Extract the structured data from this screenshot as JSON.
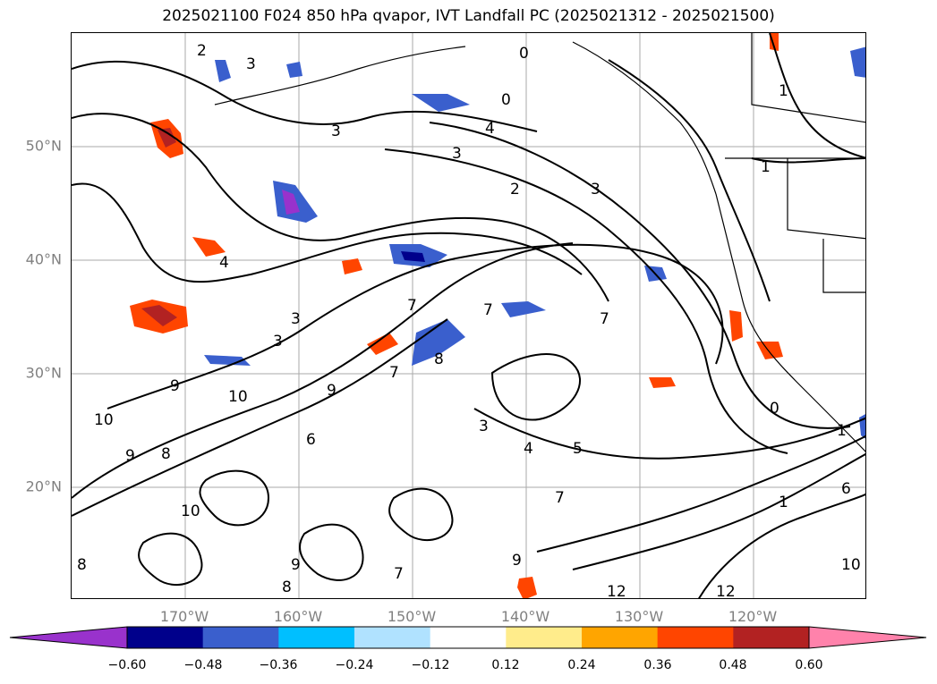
{
  "title": "2025021100 F024 850 hPa qvapor, IVT Landfall PC (2025021312 - 2025021500)",
  "map": {
    "lat_labels": [
      "50°N",
      "40°N",
      "30°N",
      "20°N"
    ],
    "lon_labels": [
      "170°W",
      "160°W",
      "150°W",
      "140°W",
      "130°W",
      "120°W"
    ],
    "contour_labels": [
      "2",
      "3",
      "3",
      "0",
      "0",
      "4",
      "3",
      "2",
      "3",
      "1",
      "1",
      "4",
      "3",
      "3",
      "7",
      "7",
      "7",
      "7",
      "8",
      "10",
      "9",
      "10",
      "9",
      "9",
      "8",
      "6",
      "10",
      "8",
      "8",
      "9",
      "9",
      "12",
      "12",
      "10",
      "6",
      "7",
      "7",
      "5",
      "0",
      "4",
      "1",
      "1",
      "3"
    ]
  },
  "colorbar": {
    "tick_labels": [
      "−0.60",
      "−0.48",
      "−0.36",
      "−0.24",
      "−0.12",
      "0.12",
      "0.24",
      "0.36",
      "0.48",
      "0.60"
    ],
    "colors": [
      "#9932CC",
      "#00008B",
      "#3A5FCD",
      "#00BFFF",
      "#B0E2FF",
      "#FFFFFF",
      "#FFEC8B",
      "#FFA500",
      "#FF4500",
      "#B22222",
      "#FF82AB"
    ]
  },
  "colors": {
    "grid": "#aaaaaa",
    "contour": "#000000",
    "axis_label": "#808080"
  }
}
